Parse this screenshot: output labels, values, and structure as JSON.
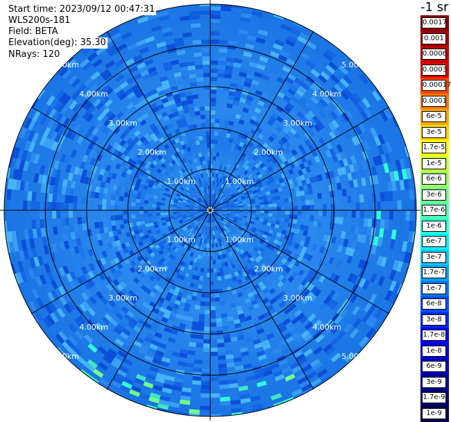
{
  "info": {
    "start_time": "Start time: 2023/09/12 00:47:31",
    "instrument": "WLS200s-181",
    "field": "Field: BETA",
    "elevation": "Elevation(deg): 35.30",
    "nrays": "NRays: 120"
  },
  "range_labels": [
    "1.00km",
    "2.00km",
    "3.00km",
    "4.00km",
    "5.00km"
  ],
  "colorbar": {
    "unit": "-1 sr",
    "labels": [
      "0.0017",
      "0.001",
      "0.0006",
      "0.0003",
      "0.00017",
      "0.0001",
      "6e-5",
      "3e-5",
      "1.7e-5",
      "1e-5",
      "6e-6",
      "3e-6",
      "1.7e-6",
      "1e-6",
      "6e-7",
      "3e-7",
      "1.7e-7",
      "1e-7",
      "6e-8",
      "3e-8",
      "1.7e-8",
      "1e-8",
      "6e-9",
      "3e-9",
      "1.7e-9",
      "1e-9"
    ],
    "colors": [
      "#8b0000",
      "#a30000",
      "#c40000",
      "#e00000",
      "#ff4400",
      "#ff7700",
      "#ffaa00",
      "#ffd200",
      "#ffff00",
      "#c8ff3a",
      "#9cff63",
      "#74ff8a",
      "#50ffb0",
      "#2cffd6",
      "#00f0ff",
      "#00c8ff",
      "#00a0ff",
      "#0078ff",
      "#0050ff",
      "#0028ff",
      "#0000ff",
      "#0000d8",
      "#0000b4",
      "#000090",
      "#00006c",
      "#000048"
    ]
  },
  "colors": {
    "field_base": "#1a78e8",
    "field_inner": "#2f95f0",
    "center": "#1c6ce0"
  }
}
